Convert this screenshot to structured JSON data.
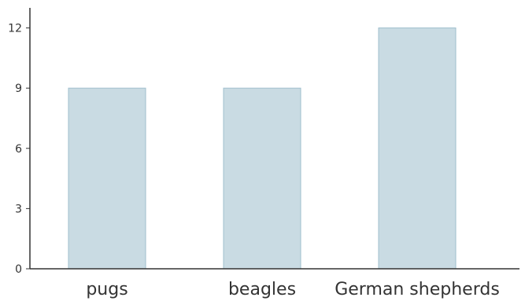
{
  "chart_data": {
    "type": "bar",
    "categories": [
      "pugs",
      "beagles",
      "German shepherds"
    ],
    "values": [
      9,
      9,
      12
    ],
    "ylim": [
      0,
      13
    ],
    "y_ticks": [
      0,
      3,
      6,
      9,
      12
    ],
    "grid": false,
    "colors": {
      "bar_fill": "#c9dbe3",
      "bar_stroke": "#9fbfcd",
      "axis": "#333333",
      "text": "#333333"
    }
  }
}
